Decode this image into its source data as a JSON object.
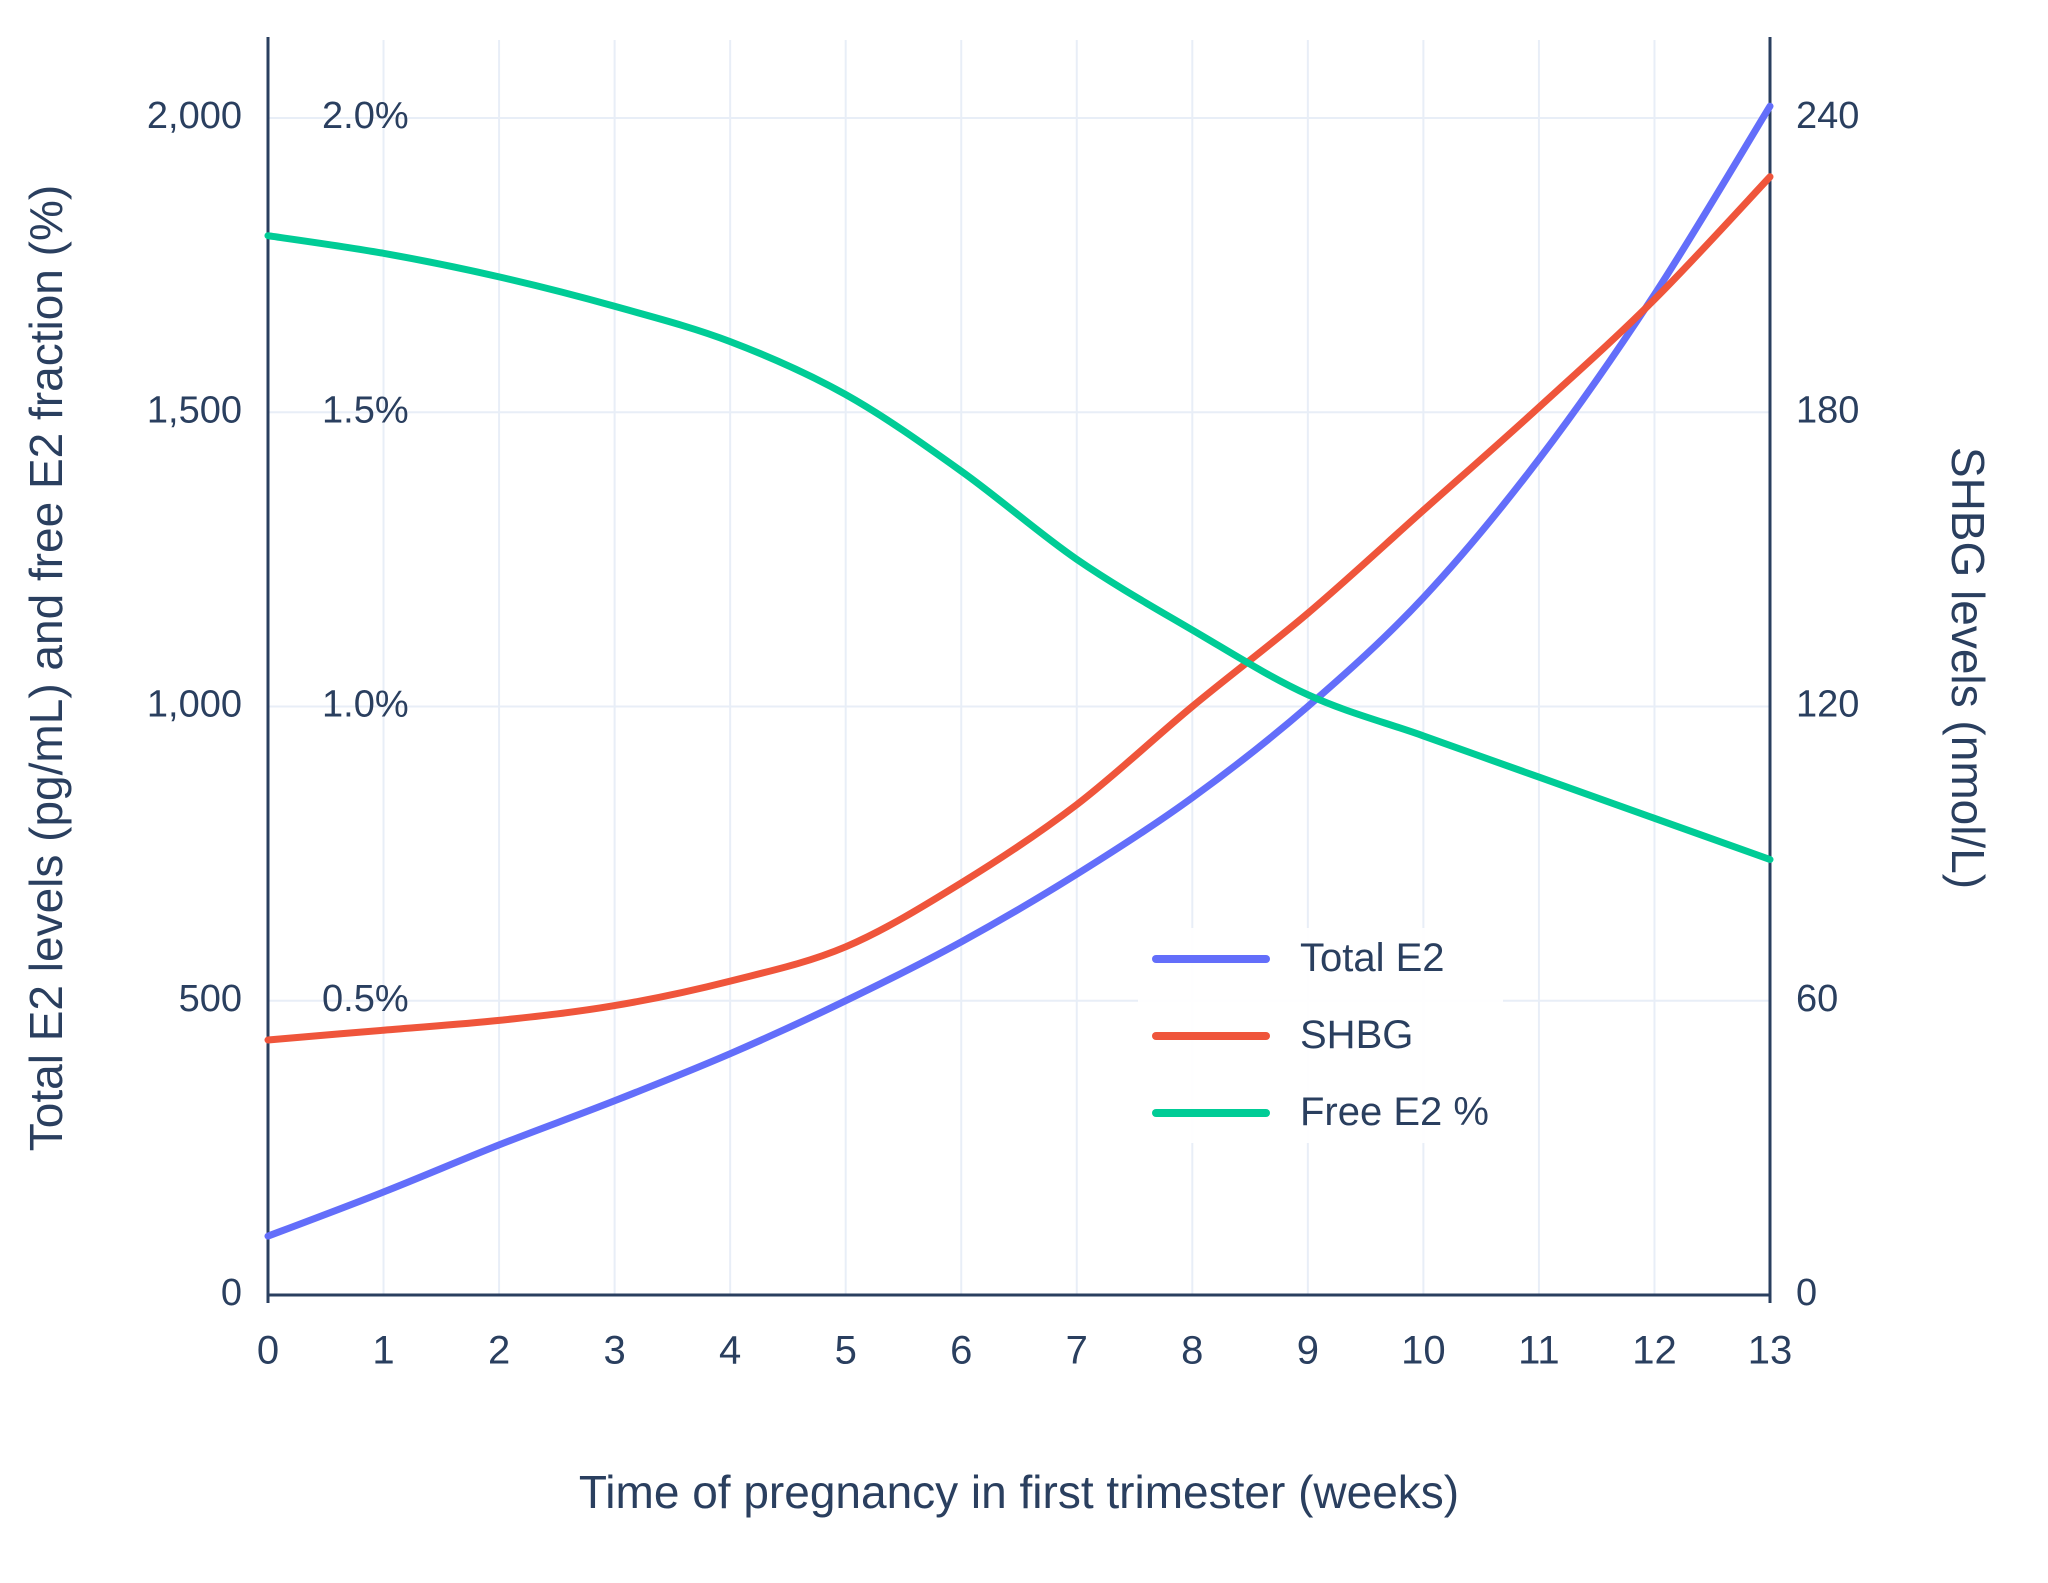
{
  "chart_data": {
    "type": "line",
    "title": "",
    "xlabel": "Time of pregnancy in first trimester (weeks)",
    "ylabel_left": "Total E2 levels (pg/mL) and free E2 fraction (%)",
    "ylabel_right": "SHBG levels (nmol/L)",
    "x": [
      0,
      1,
      2,
      3,
      4,
      5,
      6,
      7,
      8,
      9,
      10,
      11,
      12,
      13
    ],
    "x_tick_labels": [
      "0",
      "1",
      "2",
      "3",
      "4",
      "5",
      "6",
      "7",
      "8",
      "9",
      "10",
      "11",
      "12",
      "13"
    ],
    "left_axis": {
      "ticks": [
        0,
        500,
        1000,
        1500,
        2000
      ],
      "tick_labels": [
        "0",
        "500",
        "1,000",
        "1,500",
        "2,000"
      ],
      "range": [
        0,
        2124
      ]
    },
    "percent_axis": {
      "ticks": [
        500,
        1000,
        1500,
        2000
      ],
      "tick_labels": [
        "0.5%",
        "1.0%",
        "1.5%",
        "2.0%"
      ]
    },
    "right_axis": {
      "ticks": [
        0,
        60,
        120,
        180,
        240
      ],
      "tick_labels": [
        "0",
        "60",
        "120",
        "180",
        "240"
      ],
      "left_equivalent_max": 2000,
      "right_max": 240
    },
    "series": [
      {
        "name": "Total E2",
        "axis": "left",
        "unit": "pg/mL",
        "color": "#636efa",
        "values": [
          100,
          175,
          255,
          330,
          410,
          500,
          600,
          715,
          845,
          1000,
          1185,
          1420,
          1700,
          2020
        ]
      },
      {
        "name": "SHBG",
        "axis": "right",
        "unit": "nmol/L",
        "color": "#ef553b",
        "values": [
          52,
          54,
          56,
          59,
          64,
          71,
          84,
          100,
          120,
          139,
          160,
          181,
          203,
          228
        ]
      },
      {
        "name": "Free E2 %",
        "axis": "percent",
        "unit": "%",
        "color": "#00cc96",
        "values": [
          1.8,
          1.77,
          1.73,
          1.68,
          1.62,
          1.53,
          1.4,
          1.25,
          1.13,
          1.02,
          0.95,
          0.88,
          0.81,
          0.74
        ]
      }
    ],
    "legend": {
      "entries": [
        "Total E2",
        "SHBG",
        "Free E2 %"
      ],
      "position": "inside-center-right"
    },
    "grid": true,
    "colors": {
      "text": "#2a3f5f",
      "grid": "#e8eef7",
      "axis_line": "#2a3f5f",
      "background": "#ffffff"
    }
  }
}
